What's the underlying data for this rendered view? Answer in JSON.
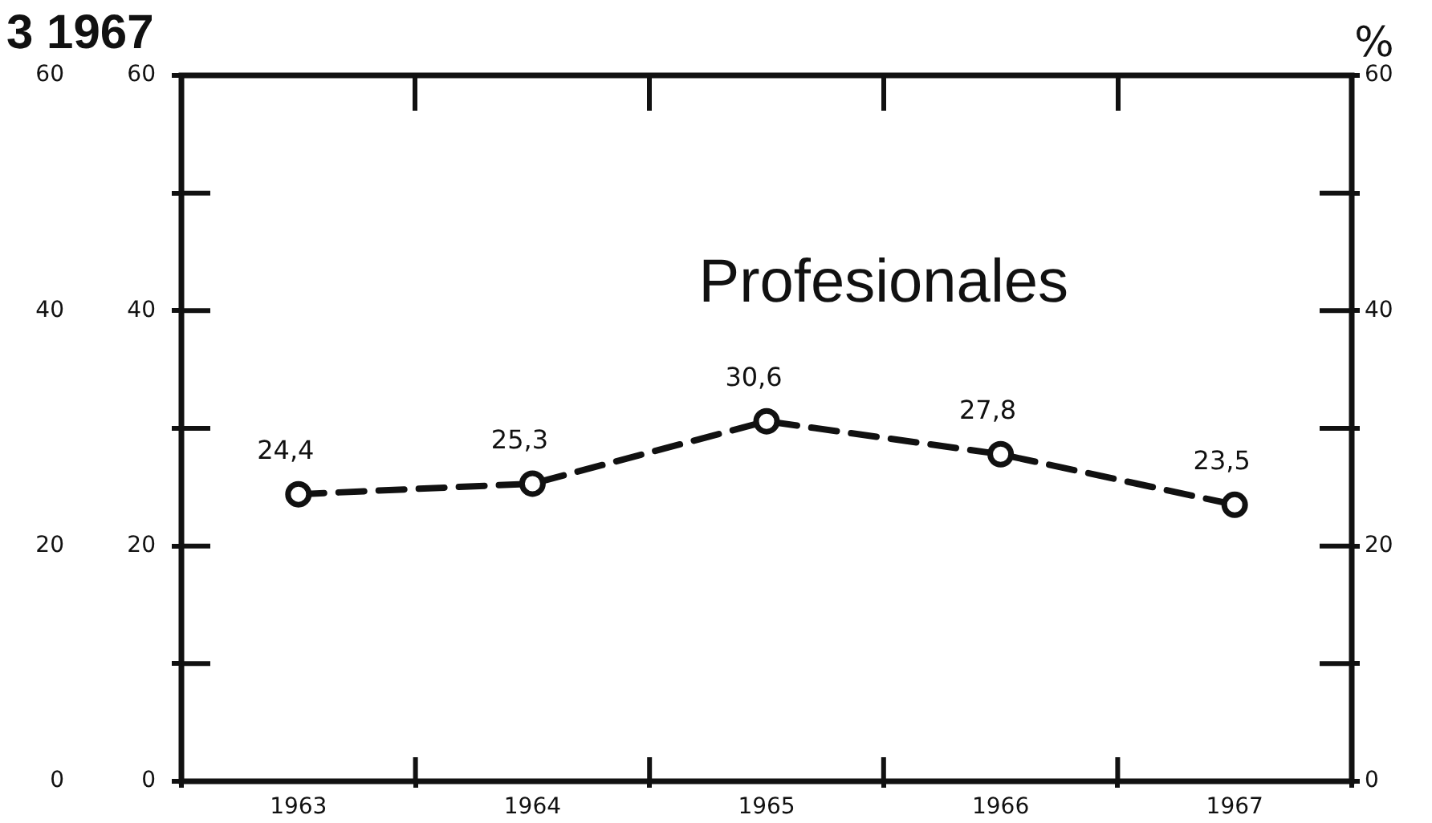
{
  "chart_data": {
    "type": "line",
    "title": "3 1967",
    "y2label": "%",
    "categories": [
      "1963",
      "1964",
      "1965",
      "1966",
      "1967"
    ],
    "series": [
      {
        "name": "Profesionales",
        "color": "#111111",
        "values": [
          24.4,
          25.3,
          30.6,
          27.8,
          23.5
        ],
        "value_labels": [
          "24,4",
          "25,3",
          "30,6",
          "27,8",
          "23,5"
        ]
      }
    ],
    "ylim": [
      0,
      60
    ],
    "yticks": [
      0,
      {
        "value": 10,
        "label": null
      },
      20,
      {
        "value": 30,
        "label": null
      },
      40,
      {
        "value": 50,
        "label": null
      },
      60
    ],
    "y2lim": [
      0,
      60
    ],
    "y2ticks": [
      0,
      {
        "value": 10,
        "label": null
      },
      20,
      {
        "value": 30,
        "label": null
      },
      40,
      {
        "value": 50,
        "label": null
      },
      60
    ],
    "y3lim": [
      0,
      60
    ],
    "y3ticks": [
      0,
      20,
      40,
      60
    ],
    "marker": "circle",
    "line_style": "dashed"
  }
}
